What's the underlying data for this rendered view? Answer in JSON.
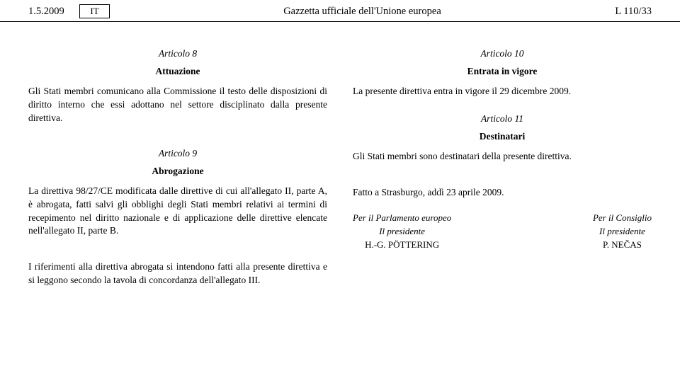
{
  "header": {
    "date": "1.5.2009",
    "lang": "IT",
    "journal": "Gazzetta ufficiale dell'Unione europea",
    "pageref": "L 110/33"
  },
  "left": {
    "art8_heading": "Articolo 8",
    "art8_title": "Attuazione",
    "art8_p1": "Gli Stati membri comunicano alla Commissione il testo delle disposizioni di diritto interno che essi adottano nel settore disciplinato dalla presente direttiva.",
    "art9_heading": "Articolo 9",
    "art9_title": "Abrogazione",
    "art9_p1": "La direttiva 98/27/CE modificata dalle direttive di cui all'allegato II, parte A, è abrogata, fatti salvi gli obblighi degli Stati membri relativi ai termini di recepimento nel diritto nazionale e di applicazione delle direttive elencate nell'allegato II, parte B.",
    "art9_p2": "I riferimenti alla direttiva abrogata si intendono fatti alla presente direttiva e si leggono secondo la tavola di concordanza dell'allegato III."
  },
  "right": {
    "art10_heading": "Articolo 10",
    "art10_title": "Entrata in vigore",
    "art10_p1": "La presente direttiva entra in vigore il 29 dicembre 2009.",
    "art11_heading": "Articolo 11",
    "art11_title": "Destinatari",
    "art11_p1": "Gli Stati membri sono destinatari della presente direttiva.",
    "done_at": "Fatto a Strasburgo, addì 23 aprile 2009."
  },
  "sig": {
    "left_for": "Per il Parlamento europeo",
    "left_role": "Il presidente",
    "left_name": "H.-G. PÖTTERING",
    "right_for": "Per il Consiglio",
    "right_role": "Il presidente",
    "right_name": "P. NEČAS"
  }
}
